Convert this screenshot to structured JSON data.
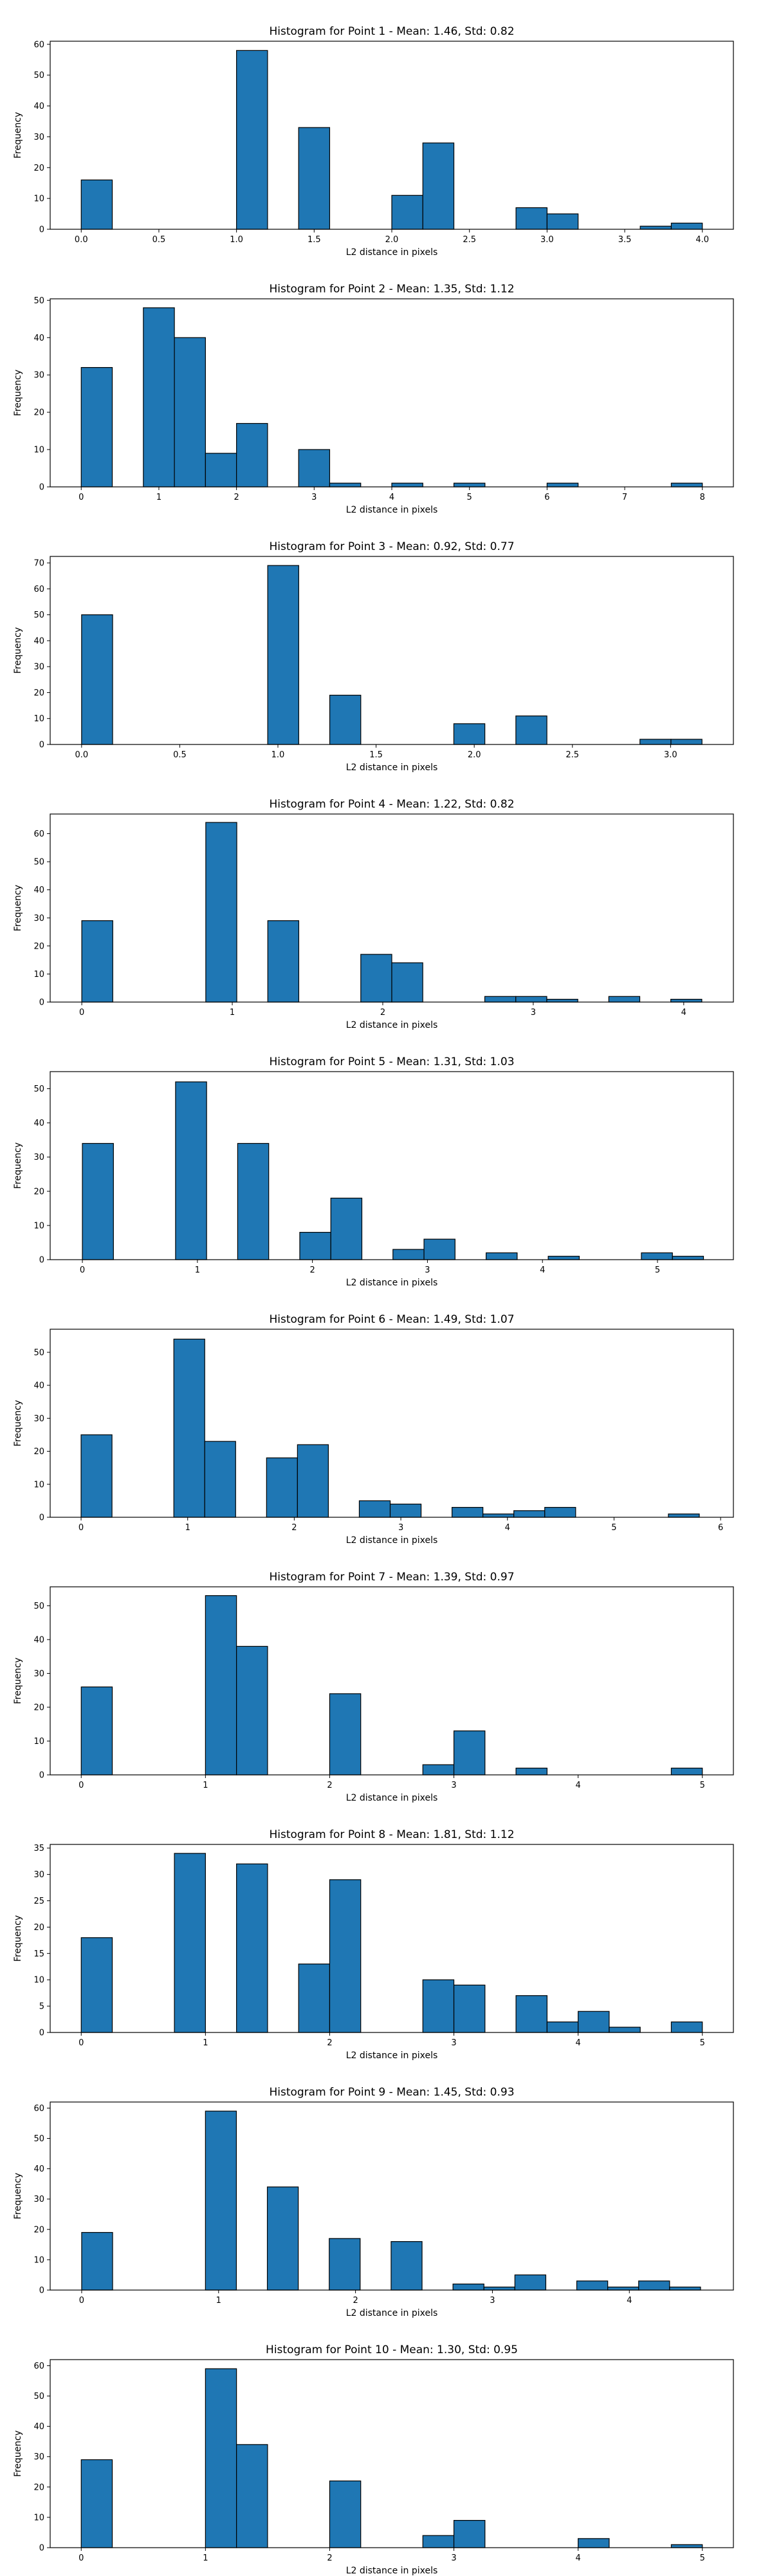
{
  "chart_data": [
    {
      "type": "histogram",
      "title": "Histogram for Point 1 - Mean: 1.46, Std: 0.82",
      "xlabel": "L2 distance in pixels",
      "ylabel": "Frequency",
      "xlim": [
        -0.2,
        4.2
      ],
      "ylim": [
        0,
        61
      ],
      "xticks": [
        0.0,
        0.5,
        1.0,
        1.5,
        2.0,
        2.5,
        3.0,
        3.5,
        4.0
      ],
      "xtick_labels": [
        "0.0",
        "0.5",
        "1.0",
        "1.5",
        "2.0",
        "2.5",
        "3.0",
        "3.5",
        "4.0"
      ],
      "yticks": [
        0,
        10,
        20,
        30,
        40,
        50,
        60
      ],
      "bins": [
        [
          0.0,
          0.2,
          16
        ],
        [
          1.0,
          1.2,
          58
        ],
        [
          1.4,
          1.6,
          33
        ],
        [
          2.0,
          2.2,
          11
        ],
        [
          2.2,
          2.4,
          28
        ],
        [
          2.8,
          3.0,
          7
        ],
        [
          3.0,
          3.2,
          5
        ],
        [
          3.6,
          3.8,
          1
        ],
        [
          3.8,
          4.0,
          2
        ]
      ]
    },
    {
      "type": "histogram",
      "title": "Histogram for Point 2 - Mean: 1.35, Std: 1.12",
      "xlabel": "L2 distance in pixels",
      "ylabel": "Frequency",
      "xlim": [
        -0.4,
        8.4
      ],
      "ylim": [
        0,
        50.4
      ],
      "xticks": [
        0,
        1,
        2,
        3,
        4,
        5,
        6,
        7,
        8
      ],
      "xtick_labels": [
        "0",
        "1",
        "2",
        "3",
        "4",
        "5",
        "6",
        "7",
        "8"
      ],
      "yticks": [
        0,
        10,
        20,
        30,
        40,
        50
      ],
      "bins": [
        [
          0.0,
          0.4,
          32
        ],
        [
          0.8,
          1.2,
          48
        ],
        [
          1.2,
          1.6,
          40
        ],
        [
          1.6,
          2.0,
          9
        ],
        [
          2.0,
          2.4,
          17
        ],
        [
          2.8,
          3.2,
          10
        ],
        [
          3.2,
          3.6,
          1
        ],
        [
          4.0,
          4.4,
          1
        ],
        [
          4.8,
          5.2,
          1
        ],
        [
          6.0,
          6.4,
          1
        ],
        [
          7.6,
          8.0,
          1
        ]
      ]
    },
    {
      "type": "histogram",
      "title": "Histogram for Point 3 - Mean: 0.92, Std: 0.77",
      "xlabel": "L2 distance in pixels",
      "ylabel": "Frequency",
      "xlim": [
        -0.16,
        3.32
      ],
      "ylim": [
        0,
        72.5
      ],
      "xticks": [
        0.0,
        0.5,
        1.0,
        1.5,
        2.0,
        2.5,
        3.0
      ],
      "xtick_labels": [
        "0.0",
        "0.5",
        "1.0",
        "1.5",
        "2.0",
        "2.5",
        "3.0"
      ],
      "yticks": [
        0,
        10,
        20,
        30,
        40,
        50,
        60,
        70
      ],
      "bins": [
        [
          0.0,
          0.158,
          50
        ],
        [
          0.948,
          1.106,
          69
        ],
        [
          1.264,
          1.422,
          19
        ],
        [
          1.896,
          2.054,
          8
        ],
        [
          2.212,
          2.37,
          11
        ],
        [
          2.844,
          3.002,
          2
        ],
        [
          3.002,
          3.16,
          2
        ]
      ]
    },
    {
      "type": "histogram",
      "title": "Histogram for Point 4 - Mean: 1.22, Std: 0.82",
      "xlabel": "L2 distance in pixels",
      "ylabel": "Frequency",
      "xlim": [
        -0.21,
        4.33
      ],
      "ylim": [
        0,
        67
      ],
      "xticks": [
        0,
        1,
        2,
        3,
        4
      ],
      "xtick_labels": [
        "0",
        "1",
        "2",
        "3",
        "4"
      ],
      "yticks": [
        0,
        10,
        20,
        30,
        40,
        50,
        60
      ],
      "bins": [
        [
          0.0,
          0.206,
          29
        ],
        [
          0.824,
          1.03,
          64
        ],
        [
          1.236,
          1.442,
          29
        ],
        [
          1.854,
          2.06,
          17
        ],
        [
          2.06,
          2.266,
          14
        ],
        [
          2.678,
          2.884,
          2
        ],
        [
          2.884,
          3.09,
          2
        ],
        [
          3.09,
          3.296,
          1
        ],
        [
          3.502,
          3.708,
          2
        ],
        [
          3.914,
          4.12,
          1
        ]
      ]
    },
    {
      "type": "histogram",
      "title": "Histogram for Point 5 - Mean: 1.31, Std: 1.03",
      "xlabel": "L2 distance in pixels",
      "ylabel": "Frequency",
      "xlim": [
        -0.28,
        5.66
      ],
      "ylim": [
        0,
        55
      ],
      "xticks": [
        0,
        1,
        2,
        3,
        4,
        5
      ],
      "xtick_labels": [
        "0",
        "1",
        "2",
        "3",
        "4",
        "5"
      ],
      "yticks": [
        0,
        10,
        20,
        30,
        40,
        50
      ],
      "bins": [
        [
          0.0,
          0.27,
          34
        ],
        [
          0.81,
          1.08,
          52
        ],
        [
          1.35,
          1.62,
          34
        ],
        [
          1.89,
          2.16,
          8
        ],
        [
          2.16,
          2.43,
          18
        ],
        [
          2.7,
          2.97,
          3
        ],
        [
          2.97,
          3.24,
          6
        ],
        [
          3.51,
          3.78,
          2
        ],
        [
          4.05,
          4.32,
          1
        ],
        [
          4.86,
          5.13,
          2
        ],
        [
          5.13,
          5.4,
          1
        ]
      ]
    },
    {
      "type": "histogram",
      "title": "Histogram for Point 6 - Mean: 1.49, Std: 1.07",
      "xlabel": "L2 distance in pixels",
      "ylabel": "Frequency",
      "xlim": [
        -0.29,
        6.12
      ],
      "ylim": [
        0,
        57
      ],
      "xticks": [
        0,
        1,
        2,
        3,
        4,
        5,
        6
      ],
      "xtick_labels": [
        "0",
        "1",
        "2",
        "3",
        "4",
        "5",
        "6"
      ],
      "yticks": [
        0,
        10,
        20,
        30,
        40,
        50
      ],
      "bins": [
        [
          0.0,
          0.29,
          25
        ],
        [
          0.87,
          1.16,
          54
        ],
        [
          1.16,
          1.45,
          23
        ],
        [
          1.74,
          2.03,
          18
        ],
        [
          2.03,
          2.32,
          22
        ],
        [
          2.61,
          2.9,
          5
        ],
        [
          2.9,
          3.19,
          4
        ],
        [
          3.48,
          3.77,
          3
        ],
        [
          3.77,
          4.06,
          1
        ],
        [
          4.06,
          4.35,
          2
        ],
        [
          4.35,
          4.64,
          3
        ],
        [
          5.51,
          5.8,
          1
        ]
      ]
    },
    {
      "type": "histogram",
      "title": "Histogram for Point 7 - Mean: 1.39, Std: 0.97",
      "xlabel": "L2 distance in pixels",
      "ylabel": "Frequency",
      "xlim": [
        -0.25,
        5.25
      ],
      "ylim": [
        0,
        55.6
      ],
      "xticks": [
        0,
        1,
        2,
        3,
        4,
        5
      ],
      "xtick_labels": [
        "0",
        "1",
        "2",
        "3",
        "4",
        "5"
      ],
      "yticks": [
        0,
        10,
        20,
        30,
        40,
        50
      ],
      "bins": [
        [
          0.0,
          0.25,
          26
        ],
        [
          1.0,
          1.25,
          53
        ],
        [
          1.25,
          1.5,
          38
        ],
        [
          2.0,
          2.25,
          24
        ],
        [
          2.75,
          3.0,
          3
        ],
        [
          3.0,
          3.25,
          13
        ],
        [
          3.5,
          3.75,
          2
        ],
        [
          4.75,
          5.0,
          2
        ]
      ]
    },
    {
      "type": "histogram",
      "title": "Histogram for Point 8 - Mean: 1.81, Std: 1.12",
      "xlabel": "L2 distance in pixels",
      "ylabel": "Frequency",
      "xlim": [
        -0.25,
        5.25
      ],
      "ylim": [
        0,
        35.7
      ],
      "xticks": [
        0,
        1,
        2,
        3,
        4,
        5
      ],
      "xtick_labels": [
        "0",
        "1",
        "2",
        "3",
        "4",
        "5"
      ],
      "yticks": [
        0,
        5,
        10,
        15,
        20,
        25,
        30,
        35
      ],
      "bins": [
        [
          0.0,
          0.25,
          18
        ],
        [
          0.75,
          1.0,
          34
        ],
        [
          1.25,
          1.5,
          32
        ],
        [
          1.75,
          2.0,
          13
        ],
        [
          2.0,
          2.25,
          29
        ],
        [
          2.75,
          3.0,
          10
        ],
        [
          3.0,
          3.25,
          9
        ],
        [
          3.5,
          3.75,
          7
        ],
        [
          3.75,
          4.0,
          2
        ],
        [
          4.0,
          4.25,
          4
        ],
        [
          4.25,
          4.5,
          1
        ],
        [
          4.75,
          5.0,
          2
        ]
      ]
    },
    {
      "type": "histogram",
      "title": "Histogram for Point 9 - Mean: 1.45, Std: 0.93",
      "xlabel": "L2 distance in pixels",
      "ylabel": "Frequency",
      "xlim": [
        -0.23,
        4.76
      ],
      "ylim": [
        0,
        62
      ],
      "xticks": [
        0,
        1,
        2,
        3,
        4
      ],
      "xtick_labels": [
        "0",
        "1",
        "2",
        "3",
        "4"
      ],
      "yticks": [
        0,
        10,
        20,
        30,
        40,
        50,
        60
      ],
      "bins": [
        [
          0.0,
          0.226,
          19
        ],
        [
          0.904,
          1.13,
          59
        ],
        [
          1.356,
          1.582,
          34
        ],
        [
          1.808,
          2.034,
          17
        ],
        [
          2.26,
          2.486,
          16
        ],
        [
          2.712,
          2.938,
          2
        ],
        [
          2.938,
          3.164,
          1
        ],
        [
          3.164,
          3.39,
          5
        ],
        [
          3.616,
          3.842,
          3
        ],
        [
          3.842,
          4.068,
          1
        ],
        [
          4.068,
          4.294,
          3
        ],
        [
          4.294,
          4.52,
          1
        ]
      ]
    },
    {
      "type": "histogram",
      "title": "Histogram for Point 10 - Mean: 1.30, Std: 0.95",
      "xlabel": "L2 distance in pixels",
      "ylabel": "Frequency",
      "xlim": [
        -0.25,
        5.25
      ],
      "ylim": [
        0,
        62
      ],
      "xticks": [
        0,
        1,
        2,
        3,
        4,
        5
      ],
      "xtick_labels": [
        "0",
        "1",
        "2",
        "3",
        "4",
        "5"
      ],
      "yticks": [
        0,
        10,
        20,
        30,
        40,
        50,
        60
      ],
      "bins": [
        [
          0.0,
          0.25,
          29
        ],
        [
          1.0,
          1.25,
          59
        ],
        [
          1.25,
          1.5,
          34
        ],
        [
          2.0,
          2.25,
          22
        ],
        [
          2.75,
          3.0,
          4
        ],
        [
          3.0,
          3.25,
          9
        ],
        [
          4.0,
          4.25,
          3
        ],
        [
          4.75,
          5.0,
          1
        ]
      ]
    }
  ],
  "colors": {
    "bar_fill": "#1f77b4",
    "bar_edge": "#000000",
    "axis": "#000000"
  }
}
